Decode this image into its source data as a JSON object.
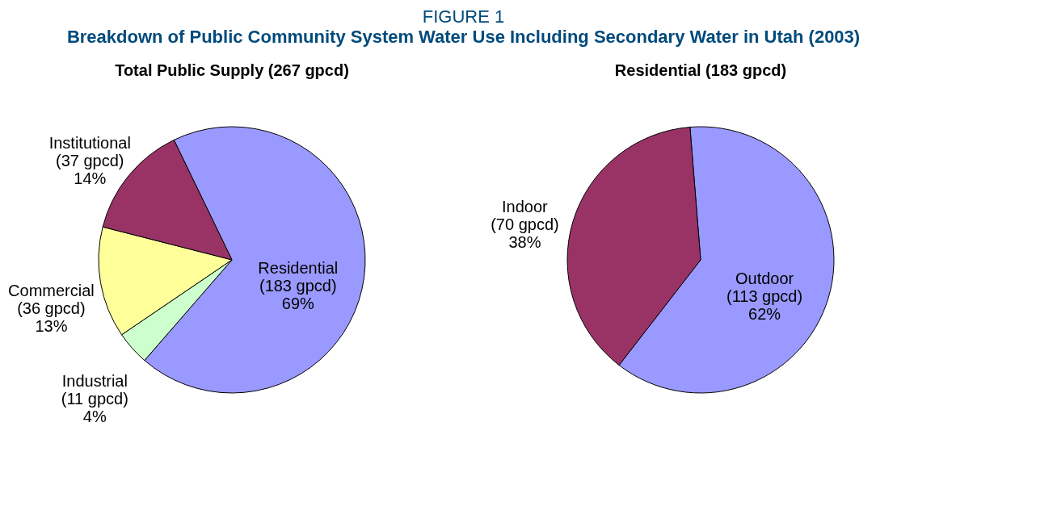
{
  "chart_data": [
    {
      "type": "pie",
      "title": "Total Public Supply (267 gpcd)",
      "annotations": [
        "FIGURE 1",
        "Breakdown of Public Community System Water Use Including Secondary Water in Utah (2003)"
      ],
      "categories": [
        "Residential",
        "Industrial",
        "Commercial",
        "Institutional"
      ],
      "values": [
        183,
        11,
        36,
        37
      ],
      "colors": [
        "#9999ff",
        "#ccffcc",
        "#ffff99",
        "#993366"
      ],
      "value_labels": [
        "(183 gpcd)\n69%",
        "(11 gpcd)\n4%",
        "(36 gpcd)\n13%",
        "(37 gpcd)\n14%"
      ],
      "legend": false
    },
    {
      "type": "pie",
      "title": "Residential (183 gpcd)",
      "categories": [
        "Outdoor",
        "Indoor"
      ],
      "values": [
        113,
        70
      ],
      "colors": [
        "#9999ff",
        "#993366"
      ],
      "value_labels": [
        "(113 gpcd)\n62%",
        "(70 gpcd)\n38%"
      ],
      "legend": false
    }
  ]
}
